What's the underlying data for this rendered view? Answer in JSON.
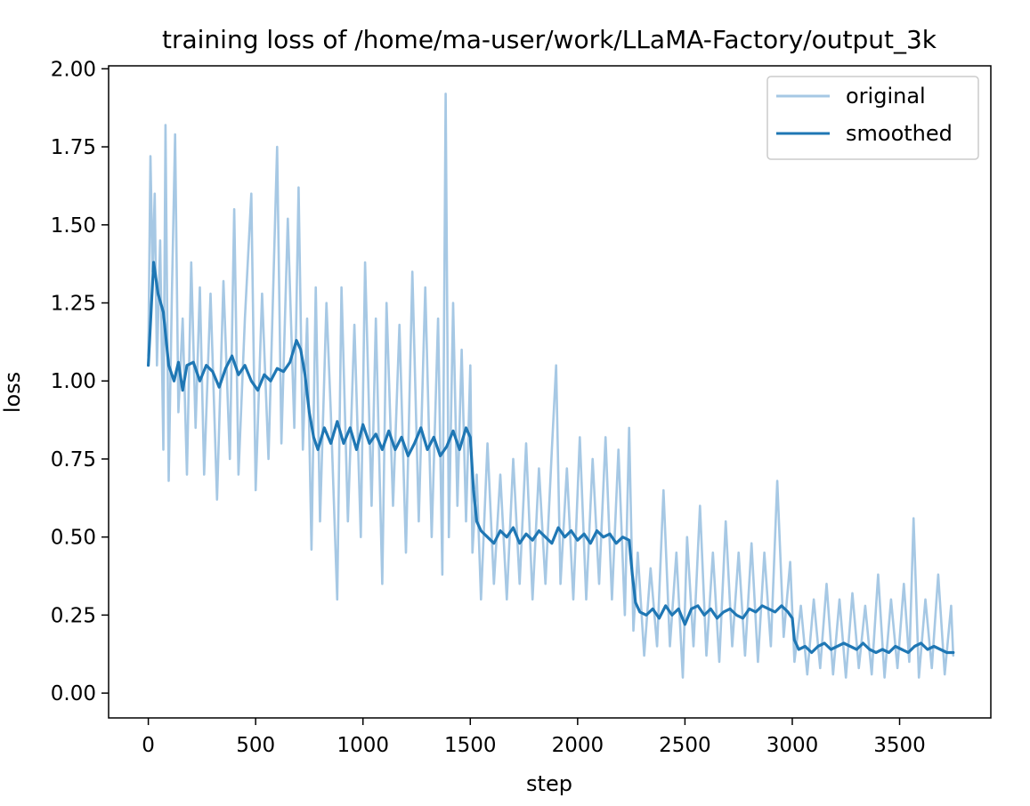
{
  "colors": {
    "original": "#a6c8e4",
    "smoothed": "#1f77b4"
  },
  "chart_data": {
    "type": "line",
    "title": "training loss of /home/ma-user/work/LLaMA-Factory/output_3k",
    "xlabel": "step",
    "ylabel": "loss",
    "xlim": [
      -185,
      3925
    ],
    "ylim": [
      -0.0795,
      2.0095
    ],
    "xticks": [
      0,
      500,
      1000,
      1500,
      2000,
      2500,
      3000,
      3500
    ],
    "xtick_labels": [
      "0",
      "500",
      "1000",
      "1500",
      "2000",
      "2500",
      "3000",
      "3500"
    ],
    "yticks": [
      0.0,
      0.25,
      0.5,
      0.75,
      1.0,
      1.25,
      1.5,
      1.75,
      2.0
    ],
    "ytick_labels": [
      "0.00",
      "0.25",
      "0.50",
      "0.75",
      "1.00",
      "1.25",
      "1.50",
      "1.75",
      "2.00"
    ],
    "grid": false,
    "legend_position": "top-right",
    "series": [
      {
        "name": "original",
        "points": [
          [
            0,
            1.08
          ],
          [
            10,
            1.72
          ],
          [
            20,
            1.35
          ],
          [
            30,
            1.6
          ],
          [
            40,
            1.05
          ],
          [
            55,
            1.45
          ],
          [
            70,
            0.78
          ],
          [
            80,
            1.82
          ],
          [
            95,
            0.68
          ],
          [
            110,
            1.28
          ],
          [
            125,
            1.79
          ],
          [
            140,
            0.9
          ],
          [
            160,
            1.2
          ],
          [
            180,
            0.7
          ],
          [
            200,
            1.38
          ],
          [
            220,
            0.85
          ],
          [
            240,
            1.3
          ],
          [
            260,
            0.7
          ],
          [
            290,
            1.28
          ],
          [
            320,
            0.62
          ],
          [
            350,
            1.32
          ],
          [
            380,
            0.75
          ],
          [
            400,
            1.55
          ],
          [
            420,
            0.7
          ],
          [
            450,
            1.2
          ],
          [
            480,
            1.6
          ],
          [
            500,
            0.65
          ],
          [
            530,
            1.28
          ],
          [
            560,
            0.75
          ],
          [
            600,
            1.75
          ],
          [
            620,
            0.8
          ],
          [
            650,
            1.52
          ],
          [
            680,
            0.85
          ],
          [
            700,
            1.62
          ],
          [
            720,
            0.78
          ],
          [
            740,
            1.2
          ],
          [
            760,
            0.46
          ],
          [
            780,
            1.3
          ],
          [
            800,
            0.55
          ],
          [
            830,
            1.25
          ],
          [
            850,
            0.9
          ],
          [
            880,
            0.3
          ],
          [
            900,
            1.3
          ],
          [
            930,
            0.55
          ],
          [
            960,
            1.18
          ],
          [
            990,
            0.5
          ],
          [
            1010,
            1.38
          ],
          [
            1040,
            0.6
          ],
          [
            1060,
            1.2
          ],
          [
            1090,
            0.35
          ],
          [
            1110,
            1.25
          ],
          [
            1140,
            0.6
          ],
          [
            1170,
            1.18
          ],
          [
            1200,
            0.45
          ],
          [
            1230,
            1.35
          ],
          [
            1260,
            0.55
          ],
          [
            1290,
            1.3
          ],
          [
            1320,
            0.5
          ],
          [
            1350,
            1.2
          ],
          [
            1370,
            0.38
          ],
          [
            1385,
            1.92
          ],
          [
            1400,
            0.5
          ],
          [
            1420,
            1.25
          ],
          [
            1440,
            0.6
          ],
          [
            1460,
            1.1
          ],
          [
            1480,
            0.55
          ],
          [
            1500,
            1.05
          ],
          [
            1510,
            0.45
          ],
          [
            1530,
            0.7
          ],
          [
            1550,
            0.3
          ],
          [
            1580,
            0.8
          ],
          [
            1610,
            0.35
          ],
          [
            1640,
            0.7
          ],
          [
            1670,
            0.3
          ],
          [
            1700,
            0.75
          ],
          [
            1730,
            0.35
          ],
          [
            1760,
            0.8
          ],
          [
            1790,
            0.3
          ],
          [
            1820,
            0.72
          ],
          [
            1850,
            0.35
          ],
          [
            1880,
            0.78
          ],
          [
            1900,
            1.05
          ],
          [
            1920,
            0.35
          ],
          [
            1950,
            0.72
          ],
          [
            1980,
            0.3
          ],
          [
            2010,
            0.82
          ],
          [
            2040,
            0.3
          ],
          [
            2070,
            0.75
          ],
          [
            2100,
            0.35
          ],
          [
            2130,
            0.82
          ],
          [
            2160,
            0.3
          ],
          [
            2190,
            0.78
          ],
          [
            2220,
            0.25
          ],
          [
            2240,
            0.85
          ],
          [
            2260,
            0.2
          ],
          [
            2280,
            0.45
          ],
          [
            2310,
            0.12
          ],
          [
            2340,
            0.4
          ],
          [
            2370,
            0.15
          ],
          [
            2400,
            0.65
          ],
          [
            2430,
            0.15
          ],
          [
            2460,
            0.45
          ],
          [
            2490,
            0.05
          ],
          [
            2510,
            0.5
          ],
          [
            2540,
            0.15
          ],
          [
            2570,
            0.6
          ],
          [
            2600,
            0.12
          ],
          [
            2630,
            0.45
          ],
          [
            2660,
            0.1
          ],
          [
            2690,
            0.55
          ],
          [
            2720,
            0.15
          ],
          [
            2750,
            0.45
          ],
          [
            2780,
            0.12
          ],
          [
            2810,
            0.48
          ],
          [
            2840,
            0.1
          ],
          [
            2870,
            0.45
          ],
          [
            2900,
            0.15
          ],
          [
            2930,
            0.68
          ],
          [
            2960,
            0.18
          ],
          [
            2990,
            0.42
          ],
          [
            3010,
            0.1
          ],
          [
            3040,
            0.28
          ],
          [
            3070,
            0.06
          ],
          [
            3100,
            0.3
          ],
          [
            3130,
            0.08
          ],
          [
            3160,
            0.35
          ],
          [
            3190,
            0.06
          ],
          [
            3220,
            0.3
          ],
          [
            3250,
            0.05
          ],
          [
            3280,
            0.32
          ],
          [
            3310,
            0.08
          ],
          [
            3340,
            0.28
          ],
          [
            3370,
            0.06
          ],
          [
            3400,
            0.38
          ],
          [
            3430,
            0.05
          ],
          [
            3460,
            0.3
          ],
          [
            3490,
            0.08
          ],
          [
            3520,
            0.35
          ],
          [
            3545,
            0.1
          ],
          [
            3565,
            0.56
          ],
          [
            3590,
            0.05
          ],
          [
            3620,
            0.3
          ],
          [
            3650,
            0.08
          ],
          [
            3680,
            0.38
          ],
          [
            3710,
            0.06
          ],
          [
            3740,
            0.28
          ],
          [
            3750,
            0.12
          ]
        ]
      },
      {
        "name": "smoothed",
        "points": [
          [
            0,
            1.05
          ],
          [
            15,
            1.25
          ],
          [
            25,
            1.38
          ],
          [
            45,
            1.28
          ],
          [
            70,
            1.22
          ],
          [
            95,
            1.05
          ],
          [
            120,
            1.0
          ],
          [
            140,
            1.06
          ],
          [
            160,
            0.97
          ],
          [
            180,
            1.05
          ],
          [
            210,
            1.06
          ],
          [
            240,
            1.0
          ],
          [
            270,
            1.05
          ],
          [
            300,
            1.03
          ],
          [
            330,
            0.98
          ],
          [
            360,
            1.04
          ],
          [
            390,
            1.08
          ],
          [
            420,
            1.02
          ],
          [
            450,
            1.05
          ],
          [
            480,
            1.0
          ],
          [
            510,
            0.97
          ],
          [
            540,
            1.02
          ],
          [
            570,
            1.0
          ],
          [
            600,
            1.04
          ],
          [
            630,
            1.03
          ],
          [
            660,
            1.06
          ],
          [
            690,
            1.13
          ],
          [
            710,
            1.1
          ],
          [
            730,
            1.02
          ],
          [
            750,
            0.9
          ],
          [
            770,
            0.82
          ],
          [
            790,
            0.78
          ],
          [
            820,
            0.85
          ],
          [
            850,
            0.8
          ],
          [
            880,
            0.87
          ],
          [
            910,
            0.8
          ],
          [
            940,
            0.85
          ],
          [
            970,
            0.78
          ],
          [
            1000,
            0.86
          ],
          [
            1030,
            0.8
          ],
          [
            1060,
            0.83
          ],
          [
            1090,
            0.78
          ],
          [
            1120,
            0.84
          ],
          [
            1150,
            0.78
          ],
          [
            1180,
            0.82
          ],
          [
            1210,
            0.76
          ],
          [
            1240,
            0.8
          ],
          [
            1270,
            0.85
          ],
          [
            1300,
            0.78
          ],
          [
            1330,
            0.82
          ],
          [
            1360,
            0.76
          ],
          [
            1390,
            0.79
          ],
          [
            1420,
            0.84
          ],
          [
            1450,
            0.78
          ],
          [
            1480,
            0.85
          ],
          [
            1500,
            0.82
          ],
          [
            1515,
            0.65
          ],
          [
            1530,
            0.55
          ],
          [
            1550,
            0.52
          ],
          [
            1580,
            0.5
          ],
          [
            1610,
            0.48
          ],
          [
            1640,
            0.52
          ],
          [
            1670,
            0.5
          ],
          [
            1700,
            0.53
          ],
          [
            1730,
            0.48
          ],
          [
            1760,
            0.51
          ],
          [
            1790,
            0.49
          ],
          [
            1820,
            0.52
          ],
          [
            1850,
            0.5
          ],
          [
            1880,
            0.48
          ],
          [
            1910,
            0.53
          ],
          [
            1940,
            0.5
          ],
          [
            1970,
            0.52
          ],
          [
            2000,
            0.49
          ],
          [
            2030,
            0.51
          ],
          [
            2060,
            0.48
          ],
          [
            2090,
            0.52
          ],
          [
            2120,
            0.5
          ],
          [
            2150,
            0.51
          ],
          [
            2180,
            0.48
          ],
          [
            2210,
            0.5
          ],
          [
            2240,
            0.49
          ],
          [
            2255,
            0.38
          ],
          [
            2270,
            0.29
          ],
          [
            2290,
            0.26
          ],
          [
            2320,
            0.25
          ],
          [
            2350,
            0.27
          ],
          [
            2380,
            0.24
          ],
          [
            2410,
            0.28
          ],
          [
            2440,
            0.25
          ],
          [
            2470,
            0.27
          ],
          [
            2500,
            0.22
          ],
          [
            2530,
            0.27
          ],
          [
            2560,
            0.28
          ],
          [
            2590,
            0.25
          ],
          [
            2620,
            0.27
          ],
          [
            2650,
            0.24
          ],
          [
            2680,
            0.26
          ],
          [
            2710,
            0.27
          ],
          [
            2740,
            0.25
          ],
          [
            2770,
            0.24
          ],
          [
            2800,
            0.27
          ],
          [
            2830,
            0.26
          ],
          [
            2860,
            0.28
          ],
          [
            2890,
            0.27
          ],
          [
            2920,
            0.26
          ],
          [
            2950,
            0.28
          ],
          [
            2980,
            0.26
          ],
          [
            3000,
            0.24
          ],
          [
            3010,
            0.17
          ],
          [
            3030,
            0.14
          ],
          [
            3060,
            0.15
          ],
          [
            3090,
            0.13
          ],
          [
            3120,
            0.15
          ],
          [
            3150,
            0.16
          ],
          [
            3180,
            0.14
          ],
          [
            3210,
            0.15
          ],
          [
            3240,
            0.16
          ],
          [
            3270,
            0.15
          ],
          [
            3300,
            0.14
          ],
          [
            3330,
            0.16
          ],
          [
            3360,
            0.14
          ],
          [
            3390,
            0.13
          ],
          [
            3420,
            0.14
          ],
          [
            3450,
            0.13
          ],
          [
            3480,
            0.15
          ],
          [
            3510,
            0.14
          ],
          [
            3540,
            0.13
          ],
          [
            3570,
            0.15
          ],
          [
            3600,
            0.16
          ],
          [
            3630,
            0.14
          ],
          [
            3660,
            0.15
          ],
          [
            3690,
            0.14
          ],
          [
            3720,
            0.13
          ],
          [
            3750,
            0.13
          ]
        ]
      }
    ]
  }
}
